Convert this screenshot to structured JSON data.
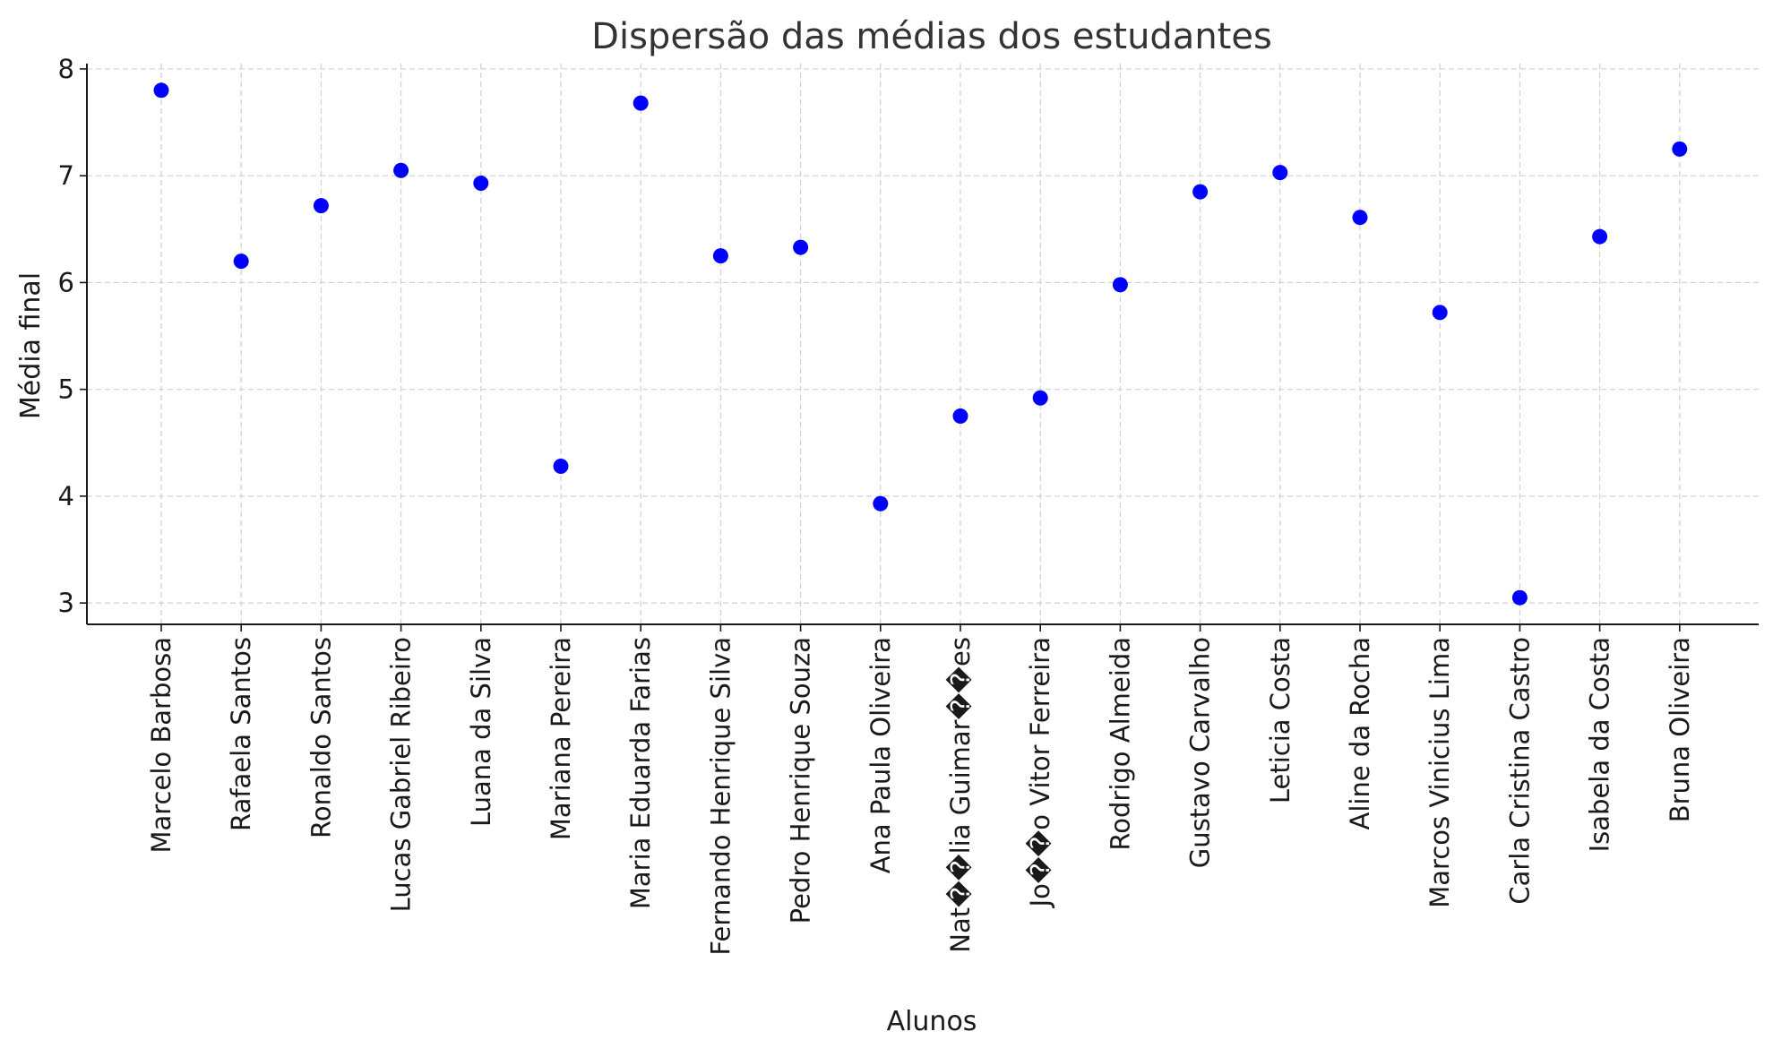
{
  "chart_data": {
    "type": "scatter",
    "title": "Dispersão das médias dos estudantes",
    "xlabel": "Alunos",
    "ylabel": "Média final",
    "ylim": [
      2.8,
      8.05
    ],
    "yticks": [
      3,
      4,
      5,
      6,
      7,
      8
    ],
    "grid": true,
    "marker_color": "#0000ff",
    "categories": [
      "Marcelo Barbosa",
      "Rafaela Santos",
      "Ronaldo Santos",
      "Lucas Gabriel Ribeiro",
      "Luana da Silva",
      "Mariana Pereira",
      "Maria Eduarda Farias",
      "Fernando Henrique Silva",
      "Pedro Henrique Souza",
      "Ana Paula Oliveira",
      "Nat��lia Guimar��es",
      "Jo��o Vitor Ferreira",
      "Rodrigo Almeida",
      "Gustavo Carvalho",
      "Leticia Costa",
      "Aline da Rocha",
      "Marcos Vinicius Lima",
      "Carla Cristina Castro",
      "Isabela da Costa",
      "Bruna Oliveira"
    ],
    "values": [
      7.8,
      6.2,
      6.72,
      7.05,
      6.93,
      4.28,
      7.68,
      6.25,
      6.33,
      3.93,
      4.75,
      4.92,
      5.98,
      6.85,
      7.03,
      6.61,
      5.72,
      3.05,
      6.43,
      7.25
    ]
  }
}
